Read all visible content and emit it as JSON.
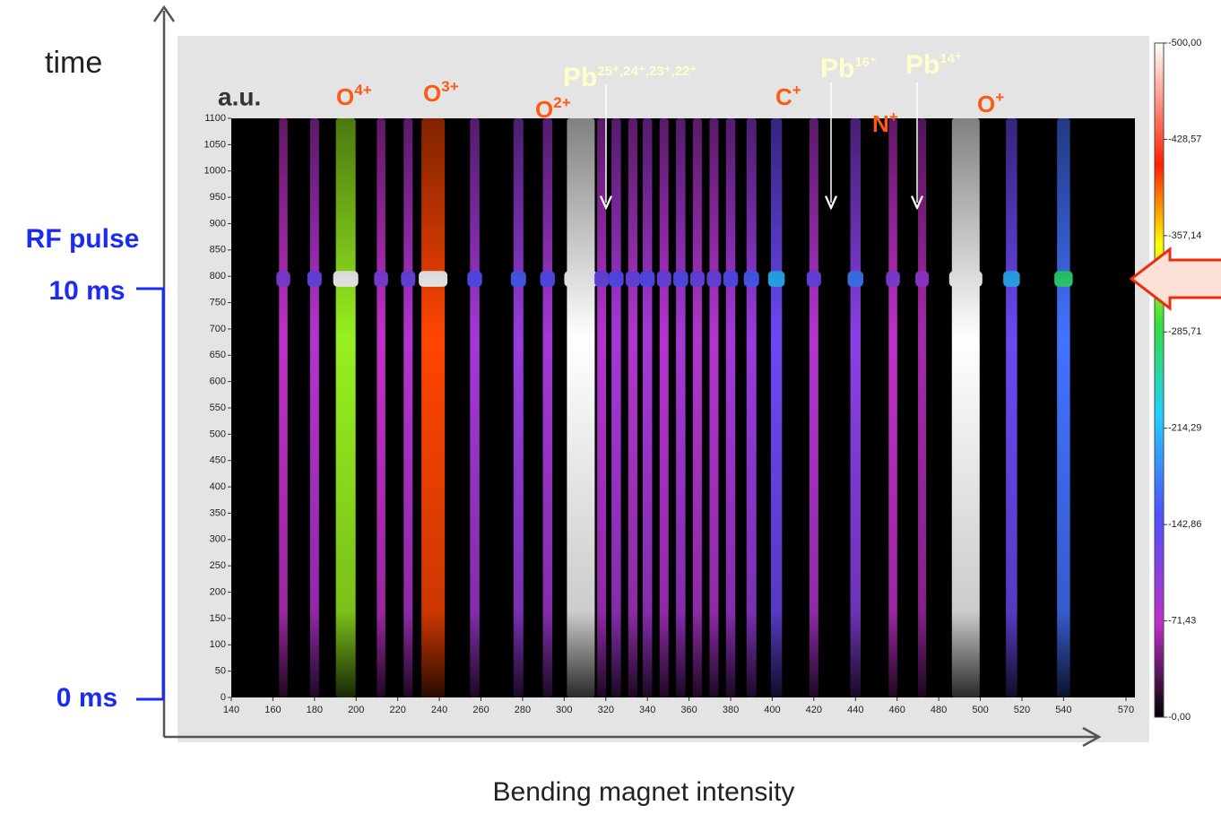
{
  "chart_data": {
    "type": "heatmap",
    "y_label": "time",
    "x_label": "Bending magnet intensity",
    "unit_label": "a.u.",
    "rf_label": "RF pulse",
    "rf_start": "10 ms",
    "rf_zero": "0 ms",
    "xlim": [
      140,
      570
    ],
    "ylim": [
      0,
      1100
    ],
    "xticks": [
      140,
      160,
      180,
      200,
      220,
      240,
      260,
      280,
      300,
      320,
      340,
      360,
      380,
      400,
      420,
      440,
      460,
      480,
      500,
      520,
      540,
      570
    ],
    "yticks": [
      0,
      50,
      100,
      150,
      200,
      250,
      300,
      350,
      400,
      450,
      500,
      550,
      600,
      650,
      700,
      750,
      800,
      850,
      900,
      950,
      1000,
      1050,
      1100
    ],
    "clim": [
      0,
      -500
    ],
    "cticks": [
      {
        "value": -500,
        "label": "-500,00"
      },
      {
        "value": -428.57,
        "label": "-428,57"
      },
      {
        "value": -357.14,
        "label": "-357,14"
      },
      {
        "value": -285.71,
        "label": "-285,71"
      },
      {
        "value": -214.29,
        "label": "-214,29"
      },
      {
        "value": -142.86,
        "label": "-142,86"
      },
      {
        "value": -71.43,
        "label": "-71,43"
      },
      {
        "value": 0,
        "label": "-0,00"
      }
    ],
    "streaks": {
      "x": [
        165,
        180,
        195,
        212,
        225,
        237,
        257,
        278,
        292,
        308,
        318,
        325,
        333,
        340,
        348,
        356,
        364,
        372,
        380,
        390,
        402,
        420,
        440,
        458,
        472,
        493,
        515,
        540
      ],
      "intensity": [
        -70,
        -80,
        -320,
        -70,
        -80,
        -400,
        -90,
        -100,
        -90,
        -500,
        -80,
        -90,
        -80,
        -90,
        -80,
        -90,
        -80,
        -80,
        -90,
        -100,
        -130,
        -80,
        -110,
        -70,
        -60,
        -500,
        -130,
        -170
      ]
    },
    "ions": [
      {
        "text": "O",
        "sup": "4+"
      },
      {
        "text": "O",
        "sup": "3+"
      },
      {
        "text": "O",
        "sup": "2+"
      },
      {
        "text": "C",
        "sup": "+"
      },
      {
        "text": "N",
        "sup": "+"
      },
      {
        "text": "O",
        "sup": "+"
      }
    ],
    "lead_labels": [
      {
        "text": "Pb",
        "sup": "25⁺,24⁺,23⁺,22⁺"
      },
      {
        "text": "Pb",
        "sup": "16⁺"
      },
      {
        "text": "Pb",
        "sup": "14⁺"
      }
    ]
  }
}
